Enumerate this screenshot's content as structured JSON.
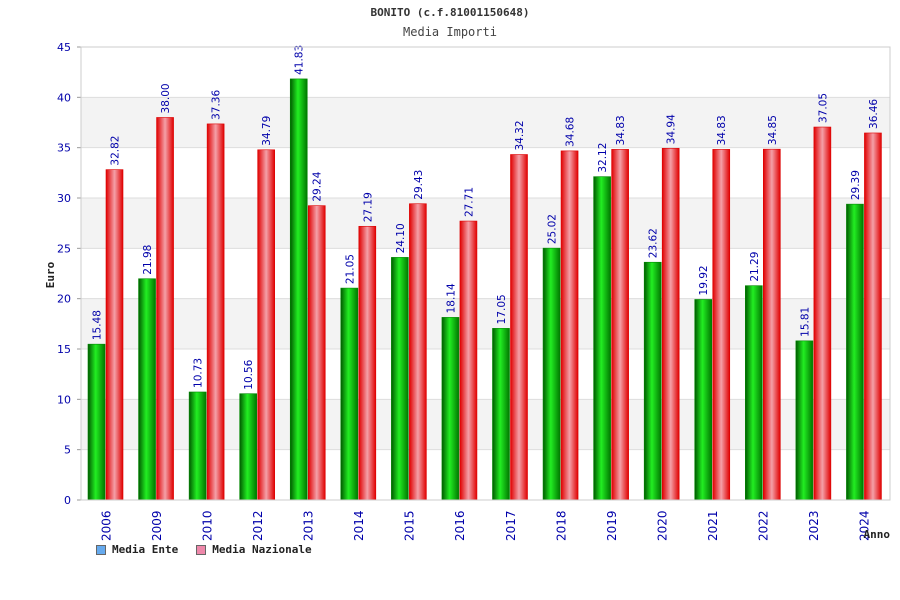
{
  "chart_data": {
    "type": "bar",
    "title": "BONITO (c.f.81001150648)",
    "subtitle": "Media Importi",
    "xlabel": "Anno",
    "ylabel": "Euro",
    "ylim": [
      0,
      45
    ],
    "yticks": [
      0,
      5,
      10,
      15,
      20,
      25,
      30,
      35,
      40,
      45
    ],
    "categories": [
      "2006",
      "2009",
      "2010",
      "2012",
      "2013",
      "2014",
      "2015",
      "2016",
      "2017",
      "2018",
      "2019",
      "2020",
      "2021",
      "2022",
      "2023",
      "2024"
    ],
    "series": [
      {
        "name": "Media Ente",
        "color": "#00aa00",
        "values": [
          15.48,
          21.98,
          10.73,
          10.56,
          41.83,
          21.05,
          24.1,
          18.14,
          17.05,
          25.02,
          32.12,
          23.62,
          19.92,
          21.29,
          15.81,
          29.39
        ],
        "labels": [
          "15.48",
          "21.98",
          "10.73",
          "10.56",
          "41.83",
          "21.05",
          "24.10",
          "18.14",
          "17.05",
          "25.02",
          "32.12",
          "23.62",
          "19.92",
          "21.29",
          "15.81",
          "29.39"
        ]
      },
      {
        "name": "Media Nazionale",
        "color": "#ee1111",
        "values": [
          32.82,
          38.0,
          37.36,
          34.79,
          29.24,
          27.19,
          29.43,
          27.71,
          34.32,
          34.68,
          34.83,
          34.94,
          34.83,
          34.85,
          37.05,
          36.46
        ],
        "labels": [
          "32.82",
          "38.00",
          "37.36",
          "34.79",
          "29.24",
          "27.19",
          "29.43",
          "27.71",
          "34.32",
          "34.68",
          "34.83",
          "34.94",
          "34.83",
          "34.85",
          "37.05",
          "36.46"
        ]
      }
    ],
    "legend": [
      {
        "label": "Media Ente",
        "swatch": "#66aaee"
      },
      {
        "label": "Media Nazionale",
        "swatch": "#ee88aa"
      }
    ],
    "grid": true,
    "legend_position": "bottom-left"
  }
}
